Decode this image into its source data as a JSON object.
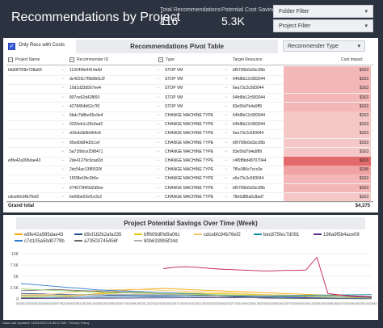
{
  "header": {
    "title": "Recommendations by Project",
    "kpis": [
      {
        "label": "Total Recommendations",
        "value": "116"
      },
      {
        "label": "Potential Cost Savings",
        "value": "5.3K"
      }
    ],
    "filters": [
      {
        "label": "Folder Filter"
      },
      {
        "label": "Project Filter"
      }
    ],
    "caret": "▾"
  },
  "pivot": {
    "checkbox_label": "Only Recs with Costs",
    "checkbox_mark": "✓",
    "title": "Recommendations Pivot Table",
    "recommender_dropdown": "Recommender Type",
    "columns": {
      "project": "Project Name",
      "rec_id": "Recommender ID",
      "type": "Type",
      "resource": "Target Resource",
      "cost": "Cost Impact"
    },
    "collapse_glyph": "−",
    "rows": [
      {
        "project": "b6d9f7f28e738a69",
        "rec_id": "119249fe4414a4d",
        "type": "STOP VM",
        "resource": "bf9700b6d1bc95b",
        "cost": "$163",
        "shade": "#f3b7b7"
      },
      {
        "project": "",
        "rec_id": "dc4023c7f9b0b0c2f",
        "type": "STOP VM",
        "resource": "64fd6b12c583044",
        "cost": "$163",
        "shade": "#f3b7b7"
      },
      {
        "project": "",
        "rec_id": "10d1d33d567ee4",
        "type": "STOP VM",
        "resource": "6ea73c2c583044",
        "cost": "$163",
        "shade": "#f3b7b7"
      },
      {
        "project": "",
        "rec_id": "807ce62d42f893",
        "type": "STOP VM",
        "resource": "64fd6b12c583044",
        "cost": "$163",
        "shade": "#f3b7b7"
      },
      {
        "project": "",
        "rec_id": "4278454b52c7f0",
        "type": "STOP VM",
        "resource": "83e56d7b4a9ff9",
        "cost": "$163",
        "shade": "#f3b7b7"
      },
      {
        "project": "",
        "rec_id": "6bdc7b8be56e9e4",
        "type": "CHANGE MACHINE TYPE",
        "resource": "64fd6b12c583044",
        "cost": "$163",
        "shade": "#f6c7c7"
      },
      {
        "project": "",
        "rec_id": "0326eb1c29c6ad2",
        "type": "CHANGE MACHINE TYPE",
        "resource": "64fd6b12c583044",
        "cost": "$163",
        "shade": "#f6c7c7"
      },
      {
        "project": "",
        "rec_id": "d10eb3b6b964c8",
        "type": "CHANGE MACHINE TYPE",
        "resource": "6ea73c2c583044",
        "cost": "$163",
        "shade": "#f6c7c7"
      },
      {
        "project": "",
        "rec_id": "85ed0d94d3c1ef",
        "type": "CHANGE MACHINE TYPE",
        "resource": "bf9700b6d1bc95b",
        "cost": "$163",
        "shade": "#f6c7c7"
      },
      {
        "project": "",
        "rec_id": "5a71fb6ce25f8471",
        "type": "CHANGE MACHINE TYPE",
        "resource": "83e56d7b4a9ff9",
        "cost": "$163",
        "shade": "#f6c7c7"
      },
      {
        "project": "e8fe42a995dae43",
        "rec_id": "2de4127bc6cad2d",
        "type": "CHANGE MACHINE TYPE",
        "resource": "c4f0f8bd48707044",
        "cost": "$316",
        "shade": "#e36a6a"
      },
      {
        "project": "",
        "rec_id": "2dc54ac1385520f",
        "type": "CHANGE MACHINE TYPE",
        "resource": "7f5e386e7ccc0e",
        "cost": "$198",
        "shade": "#f0a3a3"
      },
      {
        "project": "",
        "rec_id": "15f38e1fbc2b5e",
        "type": "CHANGE MACHINE TYPE",
        "resource": "e6a73c2c583044",
        "cost": "$163",
        "shade": "#f3b7b7"
      },
      {
        "project": "",
        "rec_id": "674073f4f3d2d5ee",
        "type": "CHANGE MACHINE TYPE",
        "resource": "bf9700b6d1bc95b",
        "cost": "$163",
        "shade": "#f3b7b7"
      },
      {
        "project": "cdcebfc94b76ef2",
        "rec_id": "be06be02ef1e3c2",
        "type": "CHANGE MACHINE TYPE",
        "resource": "78e5d86a5c8ad7",
        "cost": "$163",
        "shade": "#f6c7c7"
      }
    ],
    "grand_total_label": "Grand total",
    "grand_total_value": "$4,375"
  },
  "chart": {
    "title": "Project Potential Savings Over Time (Week)",
    "chart_data": {
      "type": "line",
      "title": "Project Potential Savings Over Time (Week)",
      "x": [
        "202341",
        "202343",
        "202345",
        "202347",
        "202349",
        "202351",
        "202301",
        "202303",
        "202305",
        "202307",
        "202309",
        "202311",
        "202313",
        "202315",
        "202317",
        "202319",
        "202321",
        "202323",
        "202325",
        "202327",
        "202329",
        "202331",
        "202333",
        "202335",
        "202337",
        "202339",
        "202341b",
        "202343b",
        "202345b",
        "202347b",
        "202349b",
        "202351b",
        "202342"
      ],
      "x_tick_labels": [
        "202341",
        "202343",
        "202345",
        "202347",
        "202349",
        "202351",
        "202301",
        "202303",
        "202305",
        "202307",
        "202309",
        "202311",
        "202313",
        "202315",
        "202317",
        "202319",
        "202321",
        "202323",
        "202325",
        "202327",
        "202329",
        "202331",
        "202333",
        "202335",
        "202337",
        "202339",
        "202341",
        "202343",
        "202345",
        "202347",
        "202349",
        "202351",
        "202342"
      ],
      "yticks": [
        "0",
        "2.5K",
        "5K",
        "7.5K",
        "10K"
      ],
      "ylim": [
        0,
        10000
      ],
      "series": [
        {
          "name": "e8fe42a995dae43",
          "color": "#f2a900",
          "values": [
            200,
            250,
            300,
            400,
            500,
            700,
            900,
            1200,
            1500,
            1800,
            2000,
            2100,
            2200,
            2300,
            2200,
            2100,
            2000,
            1900,
            1800,
            1700,
            1600,
            1500,
            1400,
            1300,
            1200,
            1100,
            1000,
            900,
            800,
            700,
            600,
            500,
            400
          ]
        },
        {
          "name": "d9cf182b2afa335",
          "color": "#1f4e8c",
          "values": [
            1200,
            1150,
            1100,
            1050,
            1000,
            950,
            900,
            850,
            800,
            780,
            760,
            740,
            720,
            700,
            680,
            660,
            640,
            620,
            600,
            580,
            560,
            540,
            520,
            500,
            480,
            460,
            440,
            420,
            400,
            380,
            360,
            340,
            320
          ]
        },
        {
          "name": "bff609df0d9a06c",
          "color": "#e8c400",
          "values": [
            600,
            650,
            700,
            750,
            800,
            900,
            1000,
            1100,
            1200,
            1300,
            1400,
            1500,
            1450,
            1400,
            1350,
            1300,
            1250,
            1200,
            1150,
            1100,
            1050,
            1000,
            950,
            900,
            850,
            800,
            750,
            700,
            650,
            600,
            550,
            500,
            450
          ]
        },
        {
          "name": "cdcebfc94b76ef2",
          "color": "#f5c46b",
          "values": [
            900,
            950,
            1000,
            1100,
            1300,
            1500,
            1700,
            1900,
            2000,
            2050,
            2100,
            2050,
            2000,
            1900,
            1800,
            1700,
            1600,
            1500,
            1400,
            1300,
            1200,
            1100,
            1000,
            900,
            800,
            700,
            600,
            500,
            400,
            350,
            300,
            250,
            200
          ]
        },
        {
          "name": "bec875fec7d091",
          "color": "#1a8fa8",
          "values": [
            300,
            320,
            340,
            360,
            380,
            400,
            420,
            440,
            460,
            480,
            500,
            520,
            540,
            560,
            580,
            600,
            620,
            640,
            660,
            680,
            700,
            720,
            740,
            760,
            780,
            800,
            820,
            840,
            860,
            880,
            900,
            920,
            940
          ]
        },
        {
          "name": "196a9f5b4ace09",
          "color": "#5b2a86",
          "values": [
            100,
            110,
            120,
            130,
            140,
            150,
            160,
            170,
            180,
            190,
            200,
            210,
            220,
            230,
            240,
            250,
            260,
            270,
            280,
            290,
            300,
            310,
            320,
            330,
            340,
            350,
            360,
            370,
            380,
            390,
            400,
            410,
            420
          ]
        },
        {
          "name": "c7d105a5bd0779b",
          "color": "#2f7dd1",
          "values": [
            3400,
            3200,
            3000,
            2800,
            2600,
            2400,
            2200,
            2000,
            1900,
            1800,
            1700,
            1600,
            1500,
            1400,
            1300,
            1200,
            1100,
            1000,
            900,
            800,
            700,
            600,
            500,
            400,
            300,
            250,
            200,
            180,
            160,
            140,
            120,
            100,
            80
          ]
        },
        {
          "name": "a73503745456f",
          "color": "#6b6b6b",
          "values": [
            1800,
            1900,
            2000,
            2100,
            2000,
            1900,
            1800,
            1700,
            1600,
            1500,
            1400,
            1300,
            1200,
            1100,
            1000,
            900,
            800,
            700,
            600,
            500,
            400,
            300,
            200,
            150,
            120,
            100,
            90,
            80,
            70,
            60,
            50,
            40,
            30
          ]
        },
        {
          "name": "80b6339b5f24d",
          "color": "#b0b0b0",
          "values": [
            800,
            820,
            840,
            860,
            880,
            900,
            920,
            940,
            960,
            980,
            1000,
            980,
            960,
            940,
            920,
            900,
            880,
            860,
            840,
            820,
            800,
            780,
            760,
            740,
            720,
            700,
            680,
            660,
            640,
            620,
            600,
            580,
            560
          ]
        },
        {
          "name": "",
          "color": "#c2185b",
          "values": [
            null,
            null,
            null,
            null,
            null,
            null,
            null,
            null,
            null,
            null,
            null,
            null,
            null,
            6700,
            7000,
            7100,
            7000,
            6800,
            6600,
            6500,
            6400,
            6300,
            6200,
            6200,
            6300,
            6300,
            6400,
            9200,
            1200,
            900,
            700,
            600,
            500
          ]
        },
        {
          "name": "",
          "color": "#9ccc65",
          "values": [
            2200,
            2100,
            2000,
            1900,
            1800,
            1700,
            1600,
            1500,
            1400,
            1350,
            1300,
            1250,
            1200,
            1150,
            1100,
            1050,
            1000,
            950,
            900,
            850,
            800,
            750,
            700,
            650,
            600,
            550,
            500,
            450,
            400,
            350,
            300,
            250,
            200
          ]
        }
      ]
    }
  },
  "footer": {
    "text": "Data Last Updated: 10/31/2023 11:55:47 AM",
    "link": "Privacy Policy"
  }
}
